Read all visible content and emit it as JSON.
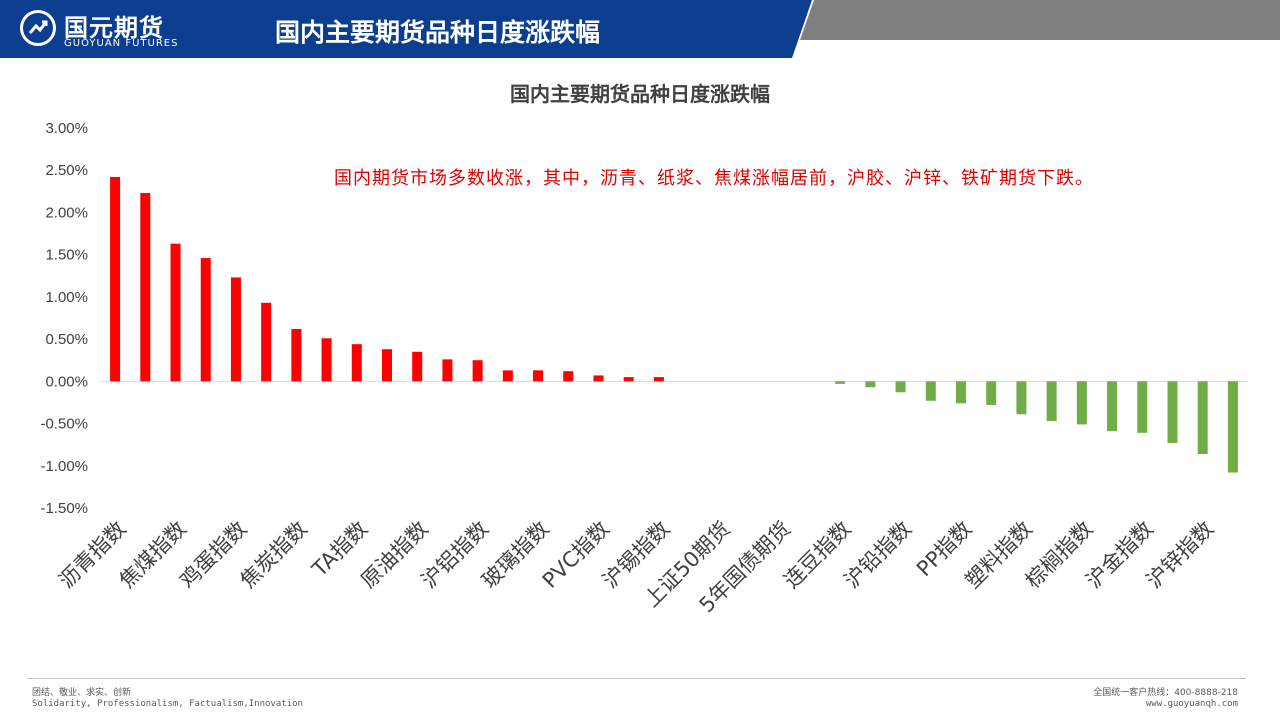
{
  "header": {
    "logo_name": "国元期货",
    "logo_en": "GUOYUAN FUTURES",
    "title": "国内主要期货品种日度涨跌幅"
  },
  "colors": {
    "header_blue": "#0b3e8f",
    "header_gray": "#7f7f7f",
    "positive": "#ff0000",
    "negative": "#70ad47",
    "annotation": "#e00000"
  },
  "annotation": "国内期货市场多数收涨，其中，沥青、纸浆、焦煤涨幅居前，沪胶、沪锌、铁矿期货下跌。",
  "chart_data": {
    "type": "bar",
    "title": "国内主要期货品种日度涨跌幅",
    "xlabel": "",
    "ylabel": "",
    "ylim": [
      -0.015,
      0.03
    ],
    "yticks": [
      "3.00%",
      "2.50%",
      "2.00%",
      "1.50%",
      "1.00%",
      "0.50%",
      "0.00%",
      "-0.50%",
      "-1.00%",
      "-1.50%"
    ],
    "ytick_values": [
      0.03,
      0.025,
      0.02,
      0.015,
      0.01,
      0.005,
      0.0,
      -0.005,
      -0.01,
      -0.015
    ],
    "categories": [
      "沥青指数",
      "",
      "焦煤指数",
      "",
      "鸡蛋指数",
      "",
      "焦炭指数",
      "",
      "TA指数",
      "",
      "原油指数",
      "",
      "沪铝指数",
      "",
      "玻璃指数",
      "",
      "PVC指数",
      "",
      "沪锡指数",
      "",
      "上证50期货",
      "",
      "5年国债期货",
      "",
      "连豆指数",
      "",
      "沪铅指数",
      "",
      "PP指数",
      "",
      "塑料指数",
      "",
      "棕榈指数",
      "",
      "沪金指数",
      "",
      "沪锌指数",
      ""
    ],
    "values": [
      0.0242,
      0.0223,
      0.0163,
      0.0146,
      0.0123,
      0.0093,
      0.0062,
      0.0051,
      0.0044,
      0.0038,
      0.0035,
      0.0026,
      0.0025,
      0.0013,
      0.0013,
      0.0012,
      0.0007,
      0.0005,
      0.0005,
      0.0,
      0.0,
      0.0,
      0.0,
      0.0,
      -0.0003,
      -0.0007,
      -0.0013,
      -0.0023,
      -0.0026,
      -0.0028,
      -0.0039,
      -0.0047,
      -0.0051,
      -0.0059,
      -0.0061,
      -0.0073,
      -0.0086,
      -0.0108
    ],
    "grid": false,
    "legend": "none"
  },
  "footer": {
    "motto_cn": "团结、敬业、求实、创新",
    "motto_en": "Solidarity, Professionalism, Factualism,Innovation",
    "hotline": "全国统一客户热线：400-8888-218",
    "website": "www.guoyuanqh.com"
  }
}
